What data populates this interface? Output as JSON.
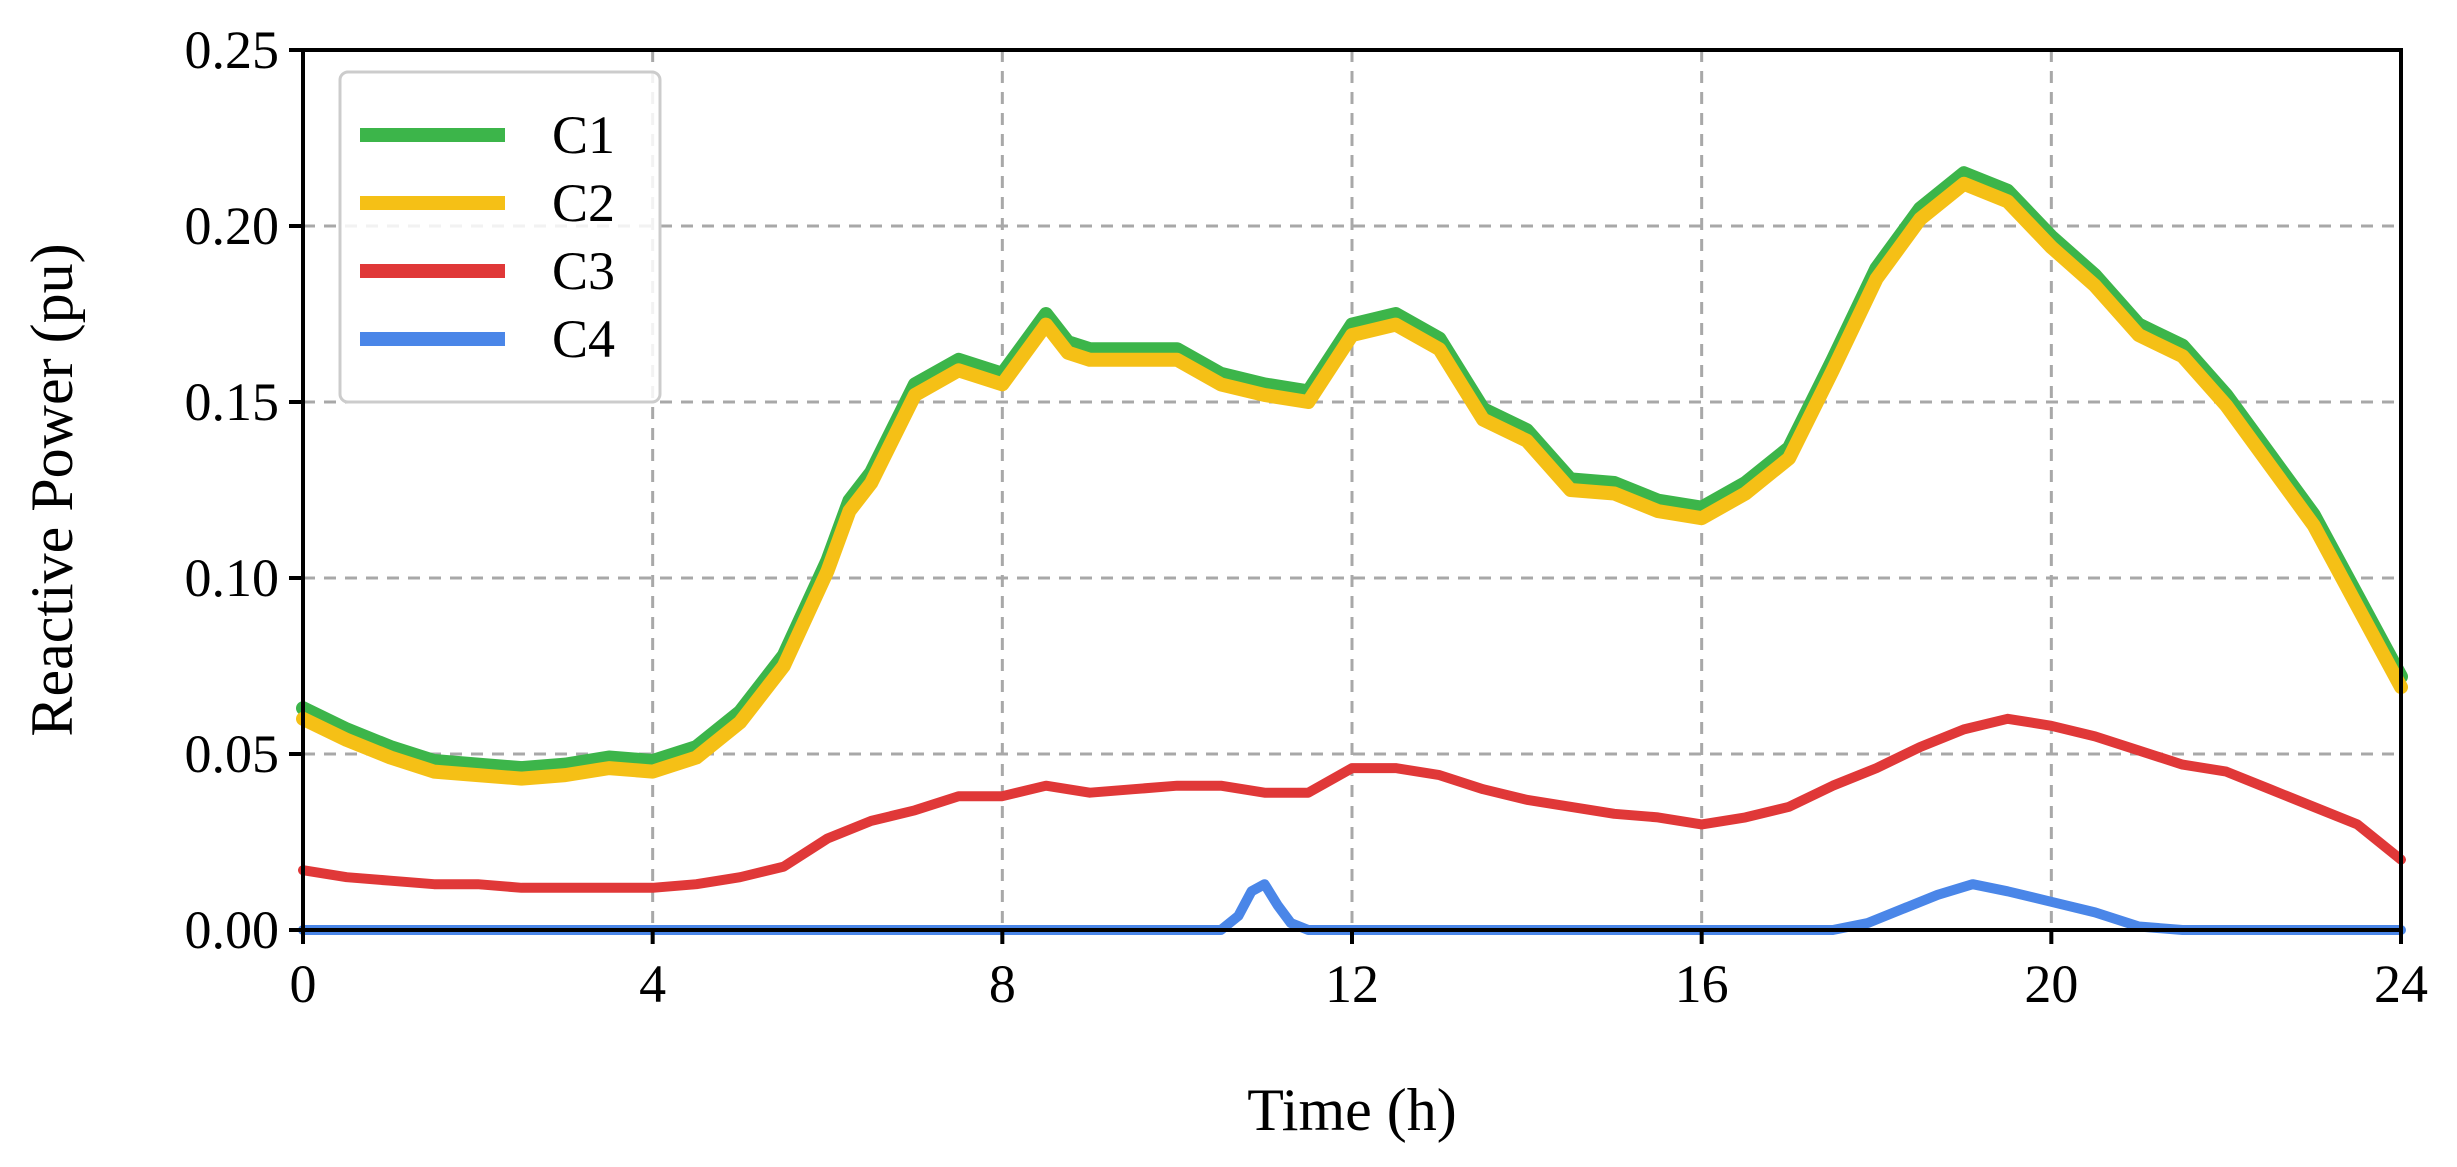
{
  "chart_data": {
    "type": "line",
    "title": "",
    "xlabel": "Time (h)",
    "ylabel": "Reactive Power (pu)",
    "xlim": [
      0,
      24
    ],
    "ylim": [
      0,
      0.25
    ],
    "xticks": [
      0,
      4,
      8,
      12,
      16,
      20,
      24
    ],
    "xtick_labels": [
      "0",
      "4",
      "8",
      "12",
      "16",
      "20",
      "24"
    ],
    "yticks": [
      0,
      0.05,
      0.1,
      0.15,
      0.2,
      0.25
    ],
    "ytick_labels": [
      "0.00",
      "0.05",
      "0.10",
      "0.15",
      "0.20",
      "0.25"
    ],
    "grid": true,
    "legend_position": "top-left",
    "series": [
      {
        "name": "C1",
        "color": "#3cb54a",
        "x": [
          0,
          0.5,
          1,
          1.5,
          2,
          2.5,
          3,
          3.5,
          4,
          4.5,
          5,
          5.5,
          6,
          6.25,
          6.5,
          7,
          7.5,
          8,
          8.5,
          8.75,
          9,
          9.5,
          10,
          10.5,
          11,
          11.5,
          12,
          12.5,
          13,
          13.5,
          14,
          14.5,
          15,
          15.5,
          16,
          16.5,
          17,
          17.5,
          18,
          18.5,
          19,
          19.5,
          20,
          20.5,
          21,
          21.5,
          22,
          22.5,
          23,
          23.5,
          24
        ],
        "y": [
          0.063,
          0.057,
          0.052,
          0.048,
          0.047,
          0.046,
          0.047,
          0.049,
          0.048,
          0.052,
          0.062,
          0.078,
          0.105,
          0.122,
          0.13,
          0.155,
          0.162,
          0.158,
          0.175,
          0.167,
          0.165,
          0.165,
          0.165,
          0.158,
          0.155,
          0.153,
          0.172,
          0.175,
          0.168,
          0.148,
          0.142,
          0.128,
          0.127,
          0.122,
          0.12,
          0.127,
          0.137,
          0.162,
          0.188,
          0.205,
          0.215,
          0.21,
          0.197,
          0.186,
          0.172,
          0.166,
          0.152,
          0.135,
          0.118,
          0.095,
          0.072
        ]
      },
      {
        "name": "C2",
        "color": "#f5c016",
        "x": [
          0,
          0.5,
          1,
          1.5,
          2,
          2.5,
          3,
          3.5,
          4,
          4.5,
          5,
          5.5,
          6,
          6.25,
          6.5,
          7,
          7.5,
          8,
          8.5,
          8.75,
          9,
          9.5,
          10,
          10.5,
          11,
          11.5,
          12,
          12.5,
          13,
          13.5,
          14,
          14.5,
          15,
          15.5,
          16,
          16.5,
          17,
          17.5,
          18,
          18.5,
          19,
          19.5,
          20,
          20.5,
          21,
          21.5,
          22,
          22.5,
          23,
          23.5,
          24
        ],
        "y": [
          0.06,
          0.054,
          0.049,
          0.045,
          0.044,
          0.043,
          0.044,
          0.046,
          0.045,
          0.049,
          0.059,
          0.075,
          0.102,
          0.119,
          0.127,
          0.152,
          0.159,
          0.155,
          0.172,
          0.164,
          0.162,
          0.162,
          0.162,
          0.155,
          0.152,
          0.15,
          0.169,
          0.172,
          0.165,
          0.145,
          0.139,
          0.125,
          0.124,
          0.119,
          0.117,
          0.124,
          0.134,
          0.159,
          0.185,
          0.202,
          0.212,
          0.207,
          0.194,
          0.183,
          0.169,
          0.163,
          0.149,
          0.132,
          0.115,
          0.092,
          0.069
        ]
      },
      {
        "name": "C3",
        "color": "#e03838",
        "x": [
          0,
          0.5,
          1,
          1.5,
          2,
          2.5,
          3,
          3.5,
          4,
          4.5,
          5,
          5.5,
          6,
          6.5,
          7,
          7.5,
          8,
          8.5,
          9,
          9.5,
          10,
          10.5,
          11,
          11.5,
          12,
          12.5,
          13,
          13.5,
          14,
          14.5,
          15,
          15.5,
          16,
          16.5,
          17,
          17.5,
          18,
          18.5,
          19,
          19.5,
          20,
          20.5,
          21,
          21.5,
          22,
          22.5,
          23,
          23.5,
          24
        ],
        "y": [
          0.017,
          0.015,
          0.014,
          0.013,
          0.013,
          0.012,
          0.012,
          0.012,
          0.012,
          0.013,
          0.015,
          0.018,
          0.026,
          0.031,
          0.034,
          0.038,
          0.038,
          0.041,
          0.039,
          0.04,
          0.041,
          0.041,
          0.039,
          0.039,
          0.046,
          0.046,
          0.044,
          0.04,
          0.037,
          0.035,
          0.033,
          0.032,
          0.03,
          0.032,
          0.035,
          0.041,
          0.046,
          0.052,
          0.057,
          0.06,
          0.058,
          0.055,
          0.051,
          0.047,
          0.045,
          0.04,
          0.035,
          0.03,
          0.02
        ]
      },
      {
        "name": "C4",
        "color": "#4a86e8",
        "x": [
          0,
          6,
          10.5,
          10.7,
          10.85,
          11,
          11.15,
          11.3,
          11.5,
          12,
          17.5,
          17.9,
          18.3,
          18.7,
          19.1,
          19.5,
          20,
          20.5,
          21,
          21.5,
          24
        ],
        "y": [
          0,
          0,
          0,
          0.004,
          0.011,
          0.013,
          0.007,
          0.002,
          0,
          0,
          0,
          0.002,
          0.006,
          0.01,
          0.013,
          0.011,
          0.008,
          0.005,
          0.001,
          0,
          0
        ]
      }
    ]
  }
}
